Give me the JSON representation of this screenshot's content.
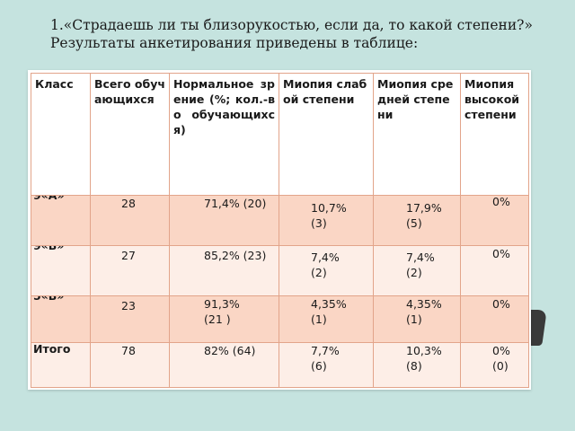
{
  "title": {
    "line1": "1.«Страдаешь ли ты близорукостью, если да, то какой степени?»",
    "line2": "Результаты анкетирования приведены в таблице:"
  },
  "table": {
    "headers": [
      "Класс",
      "Всего обучающихся",
      "Нормальное зрение (%; кол.-во обучающихся)",
      "Миопия слабой степени",
      "Миопия средней степени",
      "Миопия высокой степени"
    ],
    "rows": [
      {
        "label": "9«А»",
        "total": "28",
        "normal": "71,4% (20)",
        "weak": "10,7%\n(3)",
        "medium": "17,9%\n(5)",
        "high": "0%"
      },
      {
        "label": "9«В»",
        "total": "27",
        "normal": "85,2% (23)",
        "weak": "7,4%\n(2)",
        "medium": "7,4%\n(2)",
        "high": "0%"
      },
      {
        "label": "5«В»",
        "total": "23",
        "normal": "91,3%\n(21 )",
        "weak": "4,35%\n(1)",
        "medium": "4,35%\n(1)",
        "high": "0%"
      },
      {
        "label": "Итого",
        "total": "78",
        "normal": "82% (64)",
        "weak": "7,7%\n(6)",
        "medium": "10,3%\n(8)",
        "high": "0%\n(0)"
      }
    ]
  }
}
